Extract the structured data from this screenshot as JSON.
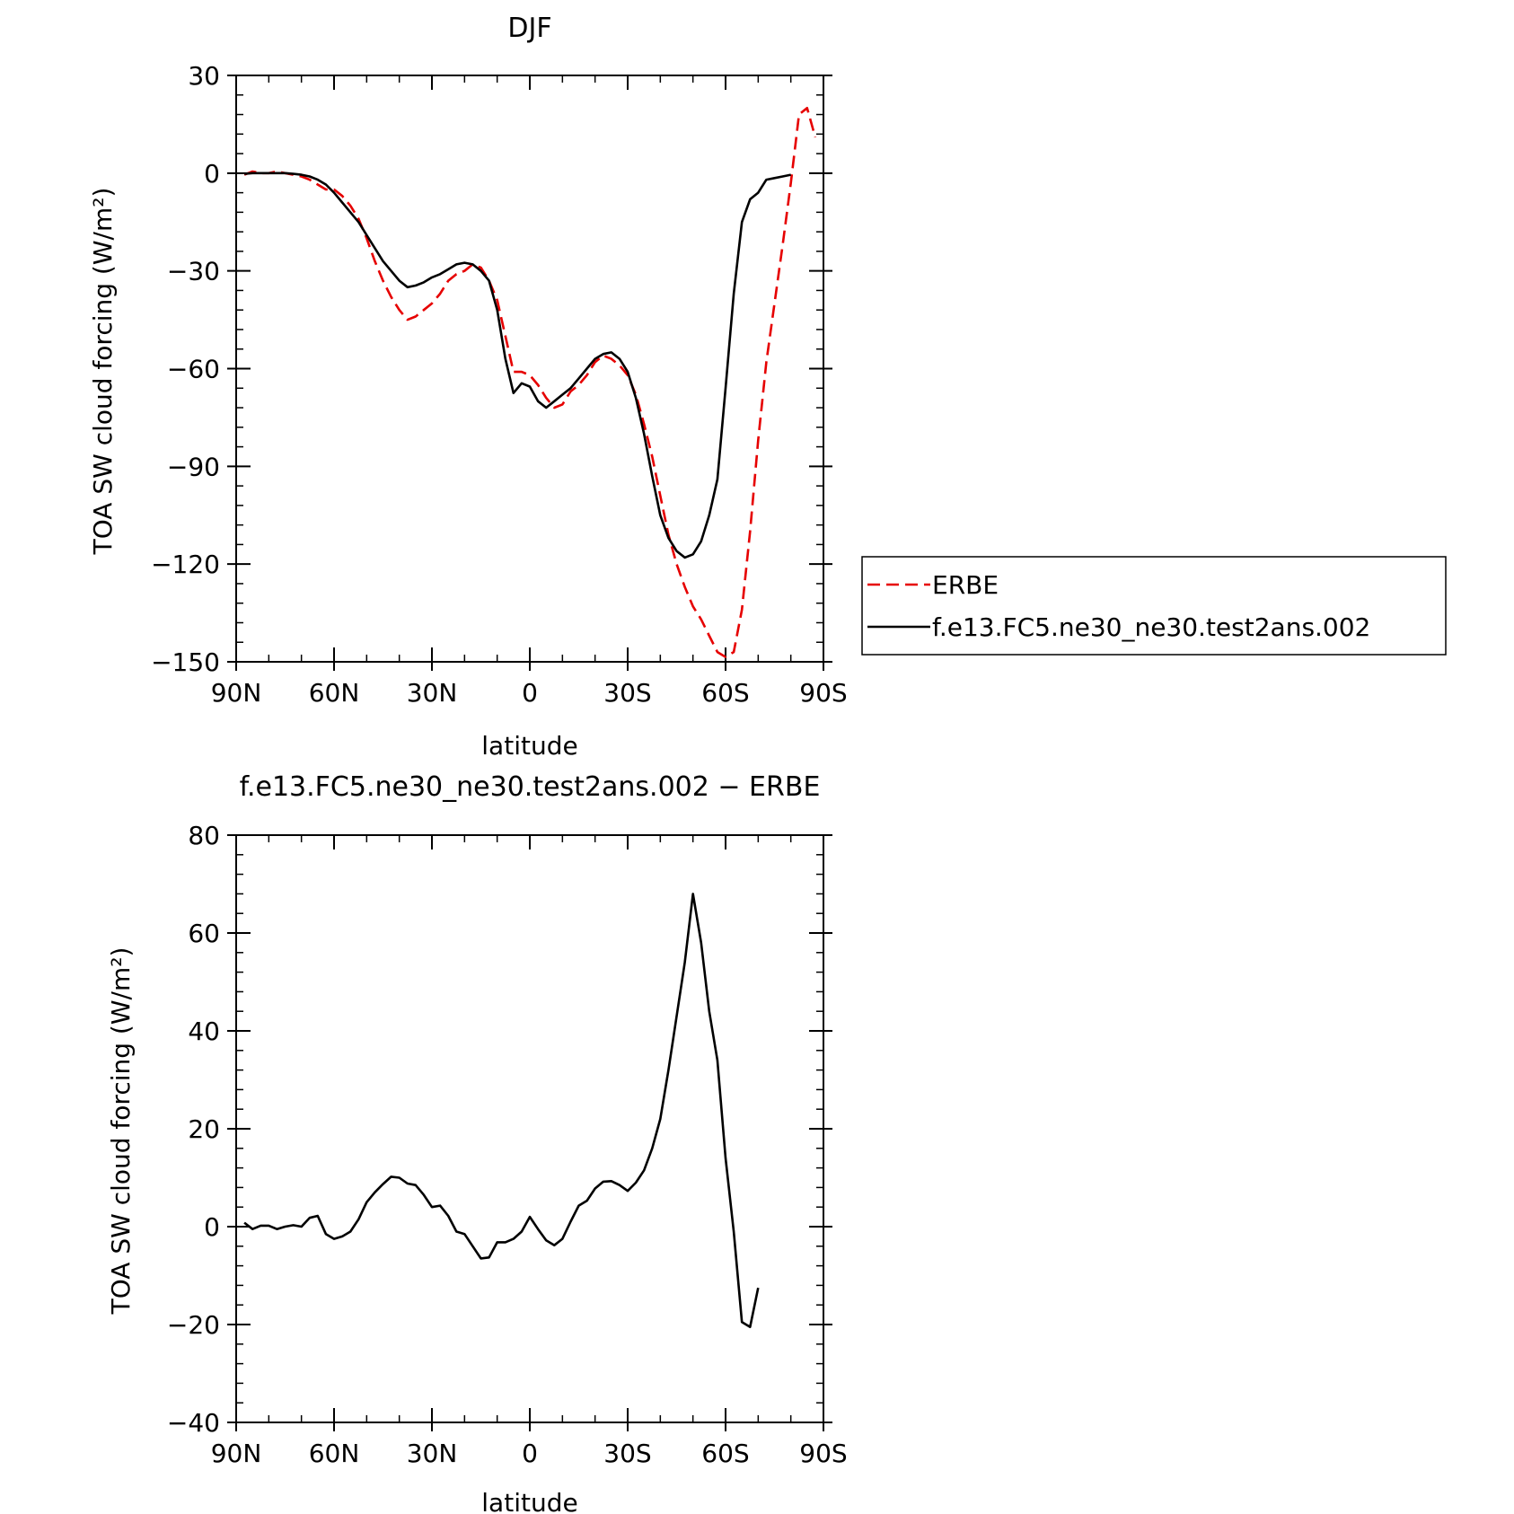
{
  "chart_data": [
    {
      "type": "line",
      "title": "DJF",
      "xlabel": "latitude",
      "ylabel": "TOA SW cloud forcing (W/m²)",
      "xlim": [
        -90,
        90
      ],
      "ylim": [
        -150,
        30
      ],
      "xticks": [
        -90,
        -60,
        -30,
        0,
        30,
        60,
        90
      ],
      "xtick_labels": [
        "90N",
        "60N",
        "30N",
        "0",
        "30S",
        "60S",
        "90S"
      ],
      "yticks": [
        30,
        0,
        -30,
        -60,
        -90,
        -120,
        -150
      ],
      "ytick_labels": [
        "30",
        "0",
        "−30",
        "−60",
        "−90",
        "−120",
        "−150"
      ],
      "legend": "outside-right",
      "series": [
        {
          "name": "ERBE",
          "color": "#e60000",
          "dash": true,
          "points": [
            [
              -87.5,
              -0.5
            ],
            [
              -85,
              0.5
            ],
            [
              -82.5,
              0
            ],
            [
              -80,
              0
            ],
            [
              -77.5,
              0.5
            ],
            [
              -75,
              0
            ],
            [
              -72.5,
              -0.5
            ],
            [
              -70,
              -1
            ],
            [
              -67.5,
              -2
            ],
            [
              -65,
              -3.5
            ],
            [
              -62.5,
              -5
            ],
            [
              -60,
              -5
            ],
            [
              -57.5,
              -7
            ],
            [
              -55,
              -10
            ],
            [
              -52.5,
              -14
            ],
            [
              -50,
              -20
            ],
            [
              -47.5,
              -27
            ],
            [
              -45,
              -33
            ],
            [
              -42.5,
              -38
            ],
            [
              -40,
              -42
            ],
            [
              -37.5,
              -45
            ],
            [
              -35,
              -44
            ],
            [
              -32.5,
              -42
            ],
            [
              -30,
              -40
            ],
            [
              -27.5,
              -37
            ],
            [
              -25,
              -33
            ],
            [
              -22.5,
              -31
            ],
            [
              -20,
              -30
            ],
            [
              -17.5,
              -28
            ],
            [
              -15,
              -29
            ],
            [
              -12.5,
              -33
            ],
            [
              -10,
              -39
            ],
            [
              -7.5,
              -50
            ],
            [
              -5,
              -61
            ],
            [
              -2.5,
              -61
            ],
            [
              0,
              -62
            ],
            [
              2.5,
              -65
            ],
            [
              5,
              -69
            ],
            [
              7.5,
              -72
            ],
            [
              10,
              -71
            ],
            [
              12.5,
              -67
            ],
            [
              15,
              -65
            ],
            [
              17.5,
              -62
            ],
            [
              20,
              -58
            ],
            [
              22.5,
              -56
            ],
            [
              25,
              -57
            ],
            [
              27.5,
              -59
            ],
            [
              30,
              -62
            ],
            [
              32.5,
              -68
            ],
            [
              35,
              -77
            ],
            [
              37.5,
              -87
            ],
            [
              40,
              -99
            ],
            [
              42.5,
              -111
            ],
            [
              45,
              -120
            ],
            [
              47.5,
              -127
            ],
            [
              50,
              -133
            ],
            [
              52.5,
              -137
            ],
            [
              55,
              -142
            ],
            [
              57.5,
              -147
            ],
            [
              60,
              -148.5
            ],
            [
              62.5,
              -147
            ],
            [
              65,
              -134
            ],
            [
              67.5,
              -110
            ],
            [
              70,
              -82
            ],
            [
              72.5,
              -58
            ],
            [
              75,
              -40
            ],
            [
              77.5,
              -22
            ],
            [
              80,
              -3
            ],
            [
              82.5,
              18
            ],
            [
              85,
              20
            ],
            [
              87.5,
              11
            ]
          ]
        },
        {
          "name": "f.e13.FC5.ne30_ne30.test2ans.002",
          "color": "#000000",
          "dash": false,
          "points": [
            [
              -87.5,
              -0.2
            ],
            [
              -85,
              0
            ],
            [
              -82.5,
              0
            ],
            [
              -80,
              0
            ],
            [
              -77.5,
              0
            ],
            [
              -75,
              0
            ],
            [
              -72.5,
              -0.2
            ],
            [
              -70,
              -0.5
            ],
            [
              -67.5,
              -1
            ],
            [
              -65,
              -2
            ],
            [
              -62.5,
              -3.5
            ],
            [
              -60,
              -6
            ],
            [
              -57.5,
              -9
            ],
            [
              -55,
              -12
            ],
            [
              -52.5,
              -15
            ],
            [
              -50,
              -19
            ],
            [
              -47.5,
              -23
            ],
            [
              -45,
              -27
            ],
            [
              -42.5,
              -30
            ],
            [
              -40,
              -33
            ],
            [
              -37.5,
              -35
            ],
            [
              -35,
              -34.5
            ],
            [
              -32.5,
              -33.5
            ],
            [
              -30,
              -32
            ],
            [
              -27.5,
              -31
            ],
            [
              -25,
              -29.5
            ],
            [
              -22.5,
              -28
            ],
            [
              -20,
              -27.5
            ],
            [
              -17.5,
              -28
            ],
            [
              -15,
              -30
            ],
            [
              -12.5,
              -33
            ],
            [
              -10,
              -42
            ],
            [
              -7.5,
              -57
            ],
            [
              -5,
              -67.5
            ],
            [
              -2.5,
              -64.5
            ],
            [
              0,
              -65.5
            ],
            [
              2.5,
              -70
            ],
            [
              5,
              -72
            ],
            [
              7.5,
              -70
            ],
            [
              10,
              -68
            ],
            [
              12.5,
              -66
            ],
            [
              15,
              -63
            ],
            [
              17.5,
              -60
            ],
            [
              20,
              -57
            ],
            [
              22.5,
              -55.5
            ],
            [
              25,
              -55
            ],
            [
              27.5,
              -57
            ],
            [
              30,
              -61
            ],
            [
              32.5,
              -69
            ],
            [
              35,
              -80
            ],
            [
              37.5,
              -93
            ],
            [
              40,
              -105
            ],
            [
              42.5,
              -112
            ],
            [
              45,
              -116
            ],
            [
              47.5,
              -118
            ],
            [
              50,
              -117
            ],
            [
              52.5,
              -113
            ],
            [
              55,
              -105
            ],
            [
              57.5,
              -94
            ],
            [
              60,
              -66
            ],
            [
              62.5,
              -37
            ],
            [
              65,
              -15
            ],
            [
              67.5,
              -8
            ],
            [
              70,
              -6
            ],
            [
              72.5,
              -2
            ],
            [
              75,
              -1.5
            ],
            [
              77.5,
              -1
            ],
            [
              80,
              -0.5
            ]
          ]
        }
      ]
    },
    {
      "type": "line",
      "title": "f.e13.FC5.ne30_ne30.test2ans.002 − ERBE",
      "xlabel": "latitude",
      "ylabel": "TOA SW cloud forcing (W/m²)",
      "xlim": [
        -90,
        90
      ],
      "ylim": [
        -40,
        80
      ],
      "xticks": [
        -90,
        -60,
        -30,
        0,
        30,
        60,
        90
      ],
      "xtick_labels": [
        "90N",
        "60N",
        "30N",
        "0",
        "30S",
        "60S",
        "90S"
      ],
      "yticks": [
        80,
        60,
        40,
        20,
        0,
        -20,
        -40
      ],
      "ytick_labels": [
        "80",
        "60",
        "40",
        "20",
        "0",
        "−20",
        "−40"
      ],
      "series": [
        {
          "color": "#000000",
          "dash": false,
          "points": [
            [
              -87.5,
              0.8
            ],
            [
              -85,
              -0.5
            ],
            [
              -82.5,
              0.2
            ],
            [
              -80,
              0.2
            ],
            [
              -77.5,
              -0.5
            ],
            [
              -75,
              0
            ],
            [
              -72.5,
              0.3
            ],
            [
              -70,
              0
            ],
            [
              -67.5,
              1.8
            ],
            [
              -65,
              2.2
            ],
            [
              -62.5,
              -1.5
            ],
            [
              -60,
              -2.5
            ],
            [
              -57.5,
              -2
            ],
            [
              -55,
              -1
            ],
            [
              -52.5,
              1.5
            ],
            [
              -50,
              5
            ],
            [
              -47.5,
              7
            ],
            [
              -45,
              8.7
            ],
            [
              -42.5,
              10.2
            ],
            [
              -40,
              10
            ],
            [
              -37.5,
              8.8
            ],
            [
              -35,
              8.5
            ],
            [
              -32.5,
              6.5
            ],
            [
              -30,
              4
            ],
            [
              -27.5,
              4.3
            ],
            [
              -25,
              2.2
            ],
            [
              -22.5,
              -1
            ],
            [
              -20,
              -1.5
            ],
            [
              -17.5,
              -4
            ],
            [
              -15,
              -6.5
            ],
            [
              -12.5,
              -6.3
            ],
            [
              -10,
              -3.2
            ],
            [
              -7.5,
              -3.2
            ],
            [
              -5,
              -2.5
            ],
            [
              -2.5,
              -1
            ],
            [
              0,
              2
            ],
            [
              2.5,
              -0.5
            ],
            [
              5,
              -2.8
            ],
            [
              7.5,
              -3.8
            ],
            [
              10,
              -2.5
            ],
            [
              12.5,
              1
            ],
            [
              15,
              4.3
            ],
            [
              17.5,
              5.3
            ],
            [
              20,
              7.8
            ],
            [
              22.5,
              9.2
            ],
            [
              25,
              9.3
            ],
            [
              27.5,
              8.5
            ],
            [
              30,
              7.3
            ],
            [
              32.5,
              9
            ],
            [
              35,
              11.5
            ],
            [
              37.5,
              16
            ],
            [
              40,
              22
            ],
            [
              42.5,
              32
            ],
            [
              45,
              43
            ],
            [
              47.5,
              54
            ],
            [
              50,
              68
            ],
            [
              52.5,
              58
            ],
            [
              55,
              44
            ],
            [
              57.5,
              34
            ],
            [
              60,
              14
            ],
            [
              62.5,
              -1
            ],
            [
              65,
              -19.5
            ],
            [
              67.5,
              -20.5
            ],
            [
              70,
              -12.5
            ]
          ]
        }
      ]
    }
  ]
}
